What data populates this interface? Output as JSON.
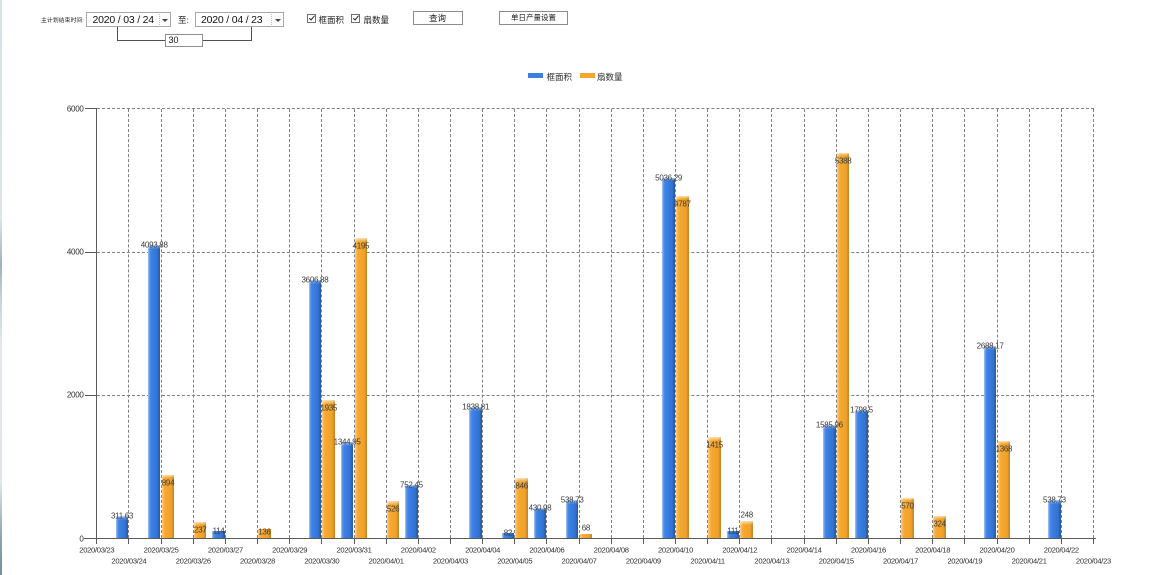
{
  "toolbar": {
    "range_label": "主计划结束时间:",
    "date_from": "2020 / 03 / 24",
    "to_label": "至:",
    "date_to": "2020 / 04 / 23",
    "days_between": "30",
    "checkboxes": [
      {
        "label": "框面积",
        "checked": true
      },
      {
        "label": "扇数量",
        "checked": true
      }
    ],
    "query_button": "查询",
    "daily_output_button": "单日产量设置"
  },
  "legend": {
    "items": [
      {
        "label": "框面积",
        "color": "#3c80e0"
      },
      {
        "label": "扇数量",
        "color": "#f5a72f"
      }
    ]
  },
  "chart_data": {
    "type": "bar",
    "title": "",
    "xlabel": "",
    "ylabel": "",
    "ylim": [
      0,
      6000
    ],
    "y_ticks": [
      0,
      2000,
      4000,
      6000
    ],
    "grid": "dashed",
    "legend_position": "top",
    "categories": [
      "2020/03/23",
      "2020/03/24",
      "2020/03/25",
      "2020/03/26",
      "2020/03/27",
      "2020/03/28",
      "2020/03/29",
      "2020/03/30",
      "2020/03/31",
      "2020/04/01",
      "2020/04/02",
      "2020/04/03",
      "2020/04/04",
      "2020/04/05",
      "2020/04/06",
      "2020/04/07",
      "2020/04/08",
      "2020/04/09",
      "2020/04/10",
      "2020/04/11",
      "2020/04/12",
      "2020/04/13",
      "2020/04/14",
      "2020/04/15",
      "2020/04/16",
      "2020/04/17",
      "2020/04/18",
      "2020/04/19",
      "2020/04/20",
      "2020/04/21",
      "2020/04/22",
      "2020/04/23"
    ],
    "series": [
      {
        "name": "框面积",
        "color": "#3c80e0",
        "values": [
          null,
          311.63,
          4093.88,
          null,
          114,
          null,
          null,
          3606.88,
          1344.95,
          null,
          752.45,
          null,
          1838.81,
          82,
          430.98,
          538.73,
          null,
          null,
          5036.29,
          null,
          111,
          null,
          null,
          1585.96,
          1798.5,
          null,
          null,
          null,
          2688.17,
          null,
          538.73,
          null
        ]
      },
      {
        "name": "扇数量",
        "color": "#f5a72f",
        "values": [
          null,
          null,
          894,
          237,
          null,
          136,
          null,
          1935,
          4195,
          526,
          null,
          null,
          null,
          846,
          null,
          68,
          null,
          null,
          4787,
          1415,
          248,
          null,
          null,
          5388,
          null,
          570,
          324,
          null,
          1368,
          null,
          null,
          null
        ],
        "labels_above_indices": [
          15,
          20
        ]
      }
    ]
  }
}
